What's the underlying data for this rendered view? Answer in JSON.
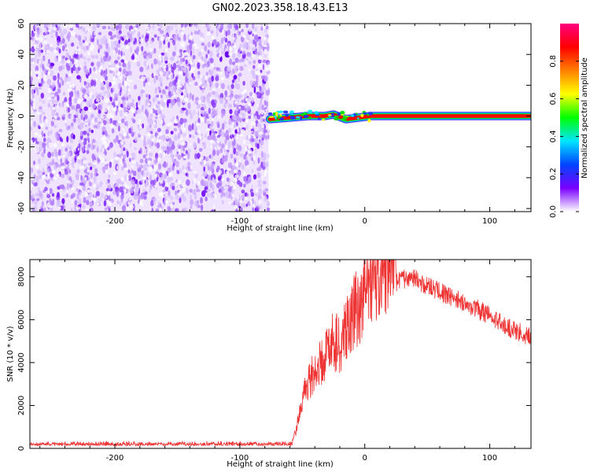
{
  "title": "GN02.2023.358.18.43.E13",
  "chart_data": [
    {
      "type": "heatmap",
      "xlabel": "Height of straight line (km)",
      "ylabel": "Frequency (Hz)",
      "xlim": [
        -268,
        133
      ],
      "ylim": [
        -62,
        60
      ],
      "x_ticks": [
        -200,
        -100,
        0,
        100
      ],
      "x_tick_labels": [
        "-200",
        "-100",
        "0",
        "100"
      ],
      "y_ticks": [
        -60,
        -40,
        -20,
        0,
        20,
        40,
        60
      ],
      "y_tick_labels": [
        "-60",
        "-40",
        "-20",
        "0",
        "20",
        "40",
        "60"
      ],
      "noise_region_x": [
        -268,
        -77
      ],
      "signal_track": [
        {
          "x": -76,
          "y": -2
        },
        {
          "x": -60,
          "y": -1
        },
        {
          "x": -45,
          "y": 0
        },
        {
          "x": -32,
          "y": 0
        },
        {
          "x": -25,
          "y": 1
        },
        {
          "x": -15,
          "y": -2
        },
        {
          "x": -5,
          "y": -1
        },
        {
          "x": 5,
          "y": 0
        },
        {
          "x": 133,
          "y": 0
        }
      ],
      "colorbar": {
        "label": "Normalized spectral amplitude",
        "range": [
          0,
          1
        ],
        "ticks": [
          0.0,
          0.2,
          0.4,
          0.6,
          0.8
        ],
        "tick_labels": [
          "0.0",
          "0.2",
          "0.4",
          "0.6",
          "0.8"
        ],
        "colors": [
          "#ffffff",
          "#7a00ff",
          "#0044ff",
          "#00e5ff",
          "#00ff00",
          "#ffff00",
          "#ff7f00",
          "#ff0000",
          "#ff007f"
        ]
      }
    },
    {
      "type": "line",
      "xlabel": "Height of straight line (km)",
      "ylabel": "SNR (10 * v/v)",
      "xlim": [
        -268,
        133
      ],
      "ylim": [
        0,
        8800
      ],
      "x_ticks": [
        -200,
        -100,
        0,
        100
      ],
      "x_tick_labels": [
        "-200",
        "-100",
        "0",
        "100"
      ],
      "y_ticks": [
        0,
        2000,
        4000,
        6000,
        8000
      ],
      "y_tick_labels": [
        "0",
        "2000",
        "4000",
        "6000",
        "8000"
      ],
      "color": "#ee3333",
      "series": [
        {
          "x": [
            -268,
            -200,
            -100,
            -58,
            -55,
            -50,
            -45,
            -40,
            -30,
            -25,
            -20,
            -10,
            0,
            10,
            20,
            30,
            40,
            60,
            80,
            100,
            120,
            133
          ],
          "y": [
            250,
            250,
            250,
            250,
            700,
            1800,
            2600,
            2900,
            3700,
            4200,
            3900,
            5100,
            6000,
            6700,
            7500,
            7900,
            7900,
            7300,
            6800,
            6200,
            5500,
            5200
          ]
        }
      ]
    }
  ]
}
